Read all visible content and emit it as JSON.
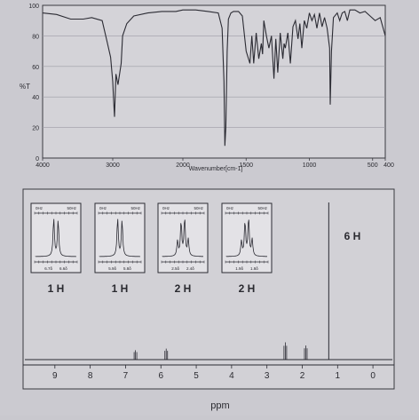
{
  "chart_data": [
    {
      "type": "line",
      "xlabel": "Wavenumber[cm-1]",
      "ylabel": "%T",
      "xlim": [
        4000,
        400
      ],
      "ylim": [
        0,
        100
      ],
      "x_ticks": [
        "4000",
        "3000",
        "2000",
        "1500",
        "1000",
        "500",
        "400"
      ],
      "y_ticks": [
        "100",
        "80",
        "60",
        "40",
        "20",
        "0"
      ],
      "x": [
        4000,
        3800,
        3600,
        3420,
        3300,
        3150,
        3080,
        3030,
        3000,
        2990,
        2975,
        2955,
        2925,
        2880,
        2860,
        2800,
        2700,
        2500,
        2300,
        2100,
        2000,
        1900,
        1800,
        1720,
        1690,
        1675,
        1668,
        1660,
        1650,
        1640,
        1620,
        1600,
        1560,
        1530,
        1500,
        1470,
        1455,
        1440,
        1420,
        1400,
        1380,
        1370,
        1360,
        1340,
        1320,
        1300,
        1280,
        1265,
        1250,
        1230,
        1210,
        1200,
        1190,
        1170,
        1150,
        1130,
        1110,
        1090,
        1075,
        1060,
        1040,
        1020,
        1000,
        980,
        960,
        940,
        920,
        900,
        880,
        860,
        840,
        835,
        825,
        810,
        780,
        760,
        740,
        720,
        700,
        680,
        640,
        600,
        560,
        520,
        480,
        440,
        400
      ],
      "y": [
        95,
        94,
        91,
        91,
        92,
        90,
        76,
        66,
        50,
        40,
        27,
        55,
        48,
        62,
        80,
        88,
        93,
        95,
        96,
        96,
        97,
        97,
        96,
        95,
        85,
        50,
        8,
        20,
        70,
        91,
        95,
        96,
        96,
        93,
        70,
        62,
        80,
        62,
        82,
        65,
        75,
        68,
        90,
        80,
        72,
        80,
        52,
        78,
        56,
        82,
        65,
        75,
        72,
        82,
        62,
        86,
        90,
        78,
        88,
        72,
        90,
        85,
        95,
        90,
        94,
        85,
        95,
        86,
        92,
        85,
        72,
        35,
        70,
        92,
        95,
        90,
        95,
        96,
        90,
        97,
        97,
        95,
        96,
        93,
        90,
        92,
        80
      ]
    },
    {
      "type": "line",
      "xlabel": "ppm",
      "xlim": [
        9.9,
        -0.6
      ],
      "x_ticks": [
        "9",
        "8",
        "7",
        "6",
        "5",
        "4",
        "3",
        "2",
        "1",
        "0"
      ],
      "peaks": [
        {
          "ppm": 6.72,
          "height": 0.06,
          "label": "1 H"
        },
        {
          "ppm": 5.85,
          "height": 0.07,
          "label": "1 H"
        },
        {
          "ppm": 2.48,
          "height": 0.11,
          "label": "2 H"
        },
        {
          "ppm": 1.9,
          "height": 0.09,
          "label": "2 H"
        },
        {
          "ppm": 1.25,
          "height": 1.0,
          "label": "6 H"
        }
      ],
      "insets": [
        {
          "header_left": "0Hz",
          "header_right": "50Hz",
          "tick_left": "6.7δ",
          "tick_right": "6.6δ",
          "integration": "1 H",
          "shape": "doublet"
        },
        {
          "header_left": "0Hz",
          "header_right": "50Hz",
          "tick_left": "5.9δ",
          "tick_right": "5.8δ",
          "integration": "1 H",
          "shape": "doublet"
        },
        {
          "header_left": "0Hz",
          "header_right": "50Hz",
          "tick_left": "2.5δ",
          "tick_right": "2.4δ",
          "integration": "2 H",
          "shape": "quartet"
        },
        {
          "header_left": "0Hz",
          "header_right": "50Hz",
          "tick_left": "1.9δ",
          "tick_right": "1.8δ",
          "integration": "2 H",
          "shape": "quartet"
        }
      ],
      "large_peak_label": "6 H"
    }
  ]
}
